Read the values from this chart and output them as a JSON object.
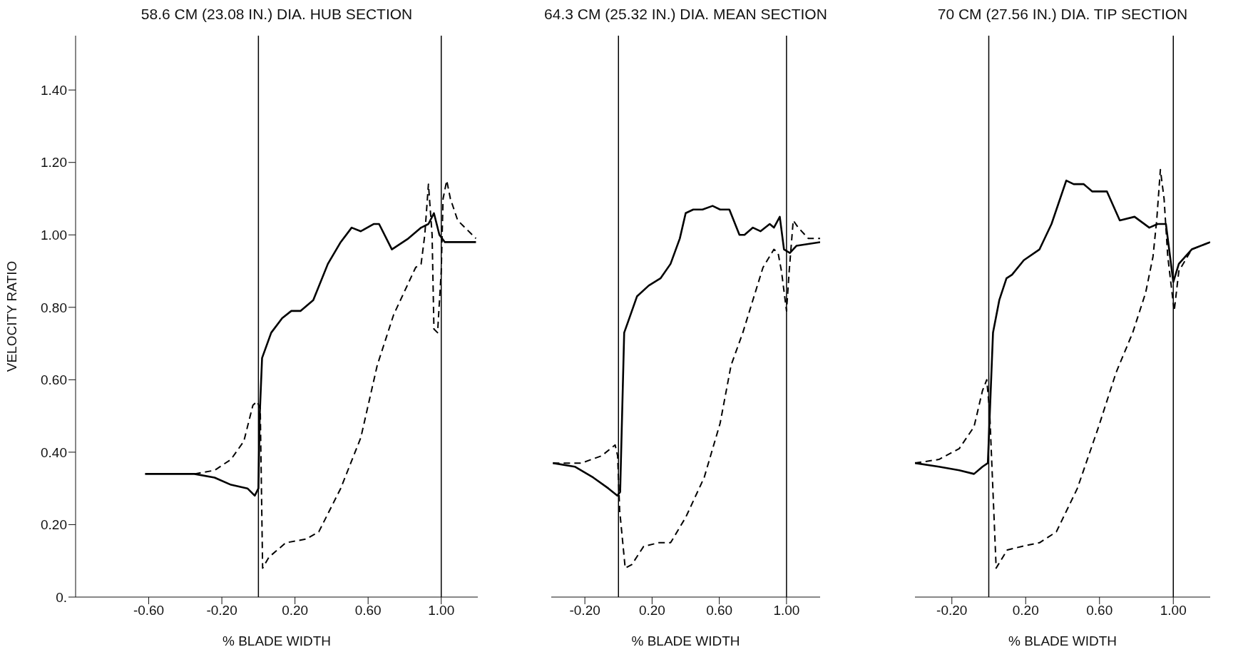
{
  "chart_data": [
    {
      "type": "line",
      "title": "58.6 CM (23.08 IN.) DIA. HUB SECTION",
      "xlabel": "% BLADE WIDTH",
      "ylabel": "VELOCITY RATIO",
      "xlim": [
        -1.0,
        1.2
      ],
      "ylim": [
        0,
        1.55
      ],
      "xticks": [
        {
          "value": -0.6,
          "label": "-0.60"
        },
        {
          "value": -0.2,
          "label": "-0.20"
        },
        {
          "value": 0.2,
          "label": "0.20"
        },
        {
          "value": 0.6,
          "label": "0.60"
        },
        {
          "value": 1.0,
          "label": "1.00"
        }
      ],
      "yticks": [
        {
          "value": 0,
          "label": "0."
        },
        {
          "value": 0.2,
          "label": "0.20"
        },
        {
          "value": 0.4,
          "label": "0.40"
        },
        {
          "value": 0.6,
          "label": "0.60"
        },
        {
          "value": 0.8,
          "label": "0.80"
        },
        {
          "value": 1.0,
          "label": "1.00"
        },
        {
          "value": 1.2,
          "label": "1.20"
        },
        {
          "value": 1.4,
          "label": "1.40"
        }
      ],
      "ref_lines": [
        {
          "axis": "x",
          "value": 0,
          "color": "#000000"
        },
        {
          "axis": "x",
          "value": 1.0,
          "color": "#000000"
        }
      ],
      "series": [
        {
          "color": "#000000",
          "line_style": "solid",
          "x": [
            -0.62,
            -0.35,
            -0.24,
            -0.15,
            -0.06,
            -0.02,
            0.0,
            0.007,
            0.02,
            0.07,
            0.13,
            0.18,
            0.23,
            0.3,
            0.38,
            0.45,
            0.51,
            0.56,
            0.63,
            0.66,
            0.73,
            0.82,
            0.89,
            0.93,
            0.96,
            0.99,
            1.02,
            1.19
          ],
          "values": [
            0.34,
            0.34,
            0.33,
            0.31,
            0.3,
            0.28,
            0.3,
            0.5,
            0.66,
            0.73,
            0.77,
            0.79,
            0.79,
            0.82,
            0.92,
            0.98,
            1.02,
            1.01,
            1.03,
            1.03,
            0.96,
            0.99,
            1.02,
            1.03,
            1.06,
            1.0,
            0.98,
            0.98
          ]
        },
        {
          "color": "#000000",
          "line_style": "dashed",
          "x": [
            -0.35,
            -0.24,
            -0.15,
            -0.08,
            -0.03,
            -0.007,
            0.01,
            0.023,
            0.057,
            0.15,
            0.26,
            0.33,
            0.45,
            0.56,
            0.65,
            0.74,
            0.86,
            0.89,
            0.91,
            0.93,
            0.95,
            0.96,
            0.98,
            1.0,
            1.01,
            1.03,
            1.05,
            1.09,
            1.19
          ],
          "values": [
            0.34,
            0.35,
            0.38,
            0.43,
            0.53,
            0.54,
            0.52,
            0.08,
            0.11,
            0.15,
            0.16,
            0.18,
            0.3,
            0.44,
            0.64,
            0.78,
            0.91,
            0.92,
            1.0,
            1.14,
            1.0,
            0.74,
            0.73,
            0.9,
            1.1,
            1.15,
            1.1,
            1.04,
            0.99
          ]
        }
      ]
    },
    {
      "type": "line",
      "title": "64.3 CM (25.32 IN.) DIA. MEAN SECTION",
      "xlabel": "% BLADE WIDTH",
      "xlim": [
        -0.4,
        1.2
      ],
      "ylim": [
        0,
        1.55
      ],
      "tick_labels": "x",
      "xticks": [
        {
          "value": -0.2,
          "label": "-0.20"
        },
        {
          "value": 0.2,
          "label": "0.20"
        },
        {
          "value": 0.6,
          "label": "0.60"
        },
        {
          "value": 1.0,
          "label": "1.00"
        }
      ],
      "ref_lines": [
        {
          "axis": "x",
          "value": 0,
          "color": "#000000"
        },
        {
          "axis": "x",
          "value": 1.0,
          "color": "#000000"
        }
      ],
      "series": [
        {
          "color": "#000000",
          "line_style": "solid",
          "x": [
            -0.39,
            -0.26,
            -0.15,
            -0.06,
            -0.007,
            0.01,
            0.034,
            0.057,
            0.11,
            0.18,
            0.25,
            0.31,
            0.365,
            0.4,
            0.445,
            0.5,
            0.56,
            0.605,
            0.66,
            0.72,
            0.75,
            0.8,
            0.845,
            0.9,
            0.925,
            0.96,
            0.985,
            1.02,
            1.06,
            1.2
          ],
          "values": [
            0.37,
            0.36,
            0.33,
            0.3,
            0.28,
            0.29,
            0.73,
            0.76,
            0.83,
            0.86,
            0.88,
            0.92,
            0.99,
            1.06,
            1.07,
            1.07,
            1.08,
            1.07,
            1.07,
            1.0,
            1.0,
            1.02,
            1.01,
            1.03,
            1.02,
            1.05,
            0.96,
            0.95,
            0.97,
            0.98
          ]
        },
        {
          "color": "#000000",
          "line_style": "dashed",
          "x": [
            -0.39,
            -0.22,
            -0.1,
            -0.02,
            -0.005,
            0.007,
            0.04,
            0.08,
            0.15,
            0.24,
            0.31,
            0.4,
            0.51,
            0.605,
            0.67,
            0.74,
            0.86,
            0.925,
            0.95,
            0.97,
            1.0,
            1.016,
            1.04,
            1.07,
            1.13,
            1.2
          ],
          "values": [
            0.37,
            0.37,
            0.39,
            0.42,
            0.39,
            0.24,
            0.08,
            0.09,
            0.14,
            0.15,
            0.15,
            0.22,
            0.33,
            0.48,
            0.64,
            0.73,
            0.91,
            0.96,
            0.95,
            0.9,
            0.79,
            0.9,
            1.04,
            1.02,
            0.99,
            0.99
          ]
        }
      ]
    },
    {
      "type": "line",
      "title": "70 CM (27.56 IN.) DIA. TIP SECTION",
      "xlabel": "% BLADE WIDTH",
      "xlim": [
        -0.4,
        1.2
      ],
      "ylim": [
        0,
        1.55
      ],
      "tick_labels": "x",
      "xticks": [
        {
          "value": -0.2,
          "label": "-0.20"
        },
        {
          "value": 0.2,
          "label": "0.20"
        },
        {
          "value": 0.6,
          "label": "0.60"
        },
        {
          "value": 1.0,
          "label": "1.00"
        }
      ],
      "ref_lines": [
        {
          "axis": "x",
          "value": 0,
          "color": "#000000"
        },
        {
          "axis": "x",
          "value": 1.0,
          "color": "#000000"
        }
      ],
      "series": [
        {
          "color": "#000000",
          "line_style": "solid",
          "x": [
            -0.4,
            -0.27,
            -0.16,
            -0.08,
            -0.034,
            -0.005,
            0.023,
            0.057,
            0.096,
            0.126,
            0.19,
            0.275,
            0.34,
            0.42,
            0.46,
            0.515,
            0.56,
            0.64,
            0.71,
            0.79,
            0.87,
            0.915,
            0.96,
            1.0,
            1.03,
            1.1,
            1.2
          ],
          "values": [
            0.37,
            0.36,
            0.35,
            0.34,
            0.36,
            0.37,
            0.73,
            0.82,
            0.88,
            0.89,
            0.93,
            0.96,
            1.03,
            1.15,
            1.14,
            1.14,
            1.12,
            1.12,
            1.04,
            1.05,
            1.02,
            1.03,
            1.03,
            0.87,
            0.92,
            0.96,
            0.98
          ]
        },
        {
          "color": "#000000",
          "line_style": "dashed",
          "x": [
            -0.4,
            -0.27,
            -0.16,
            -0.08,
            -0.034,
            -0.011,
            0.005,
            0.04,
            0.1,
            0.18,
            0.275,
            0.366,
            0.48,
            0.595,
            0.69,
            0.78,
            0.85,
            0.89,
            0.91,
            0.93,
            0.95,
            0.97,
            1.005,
            1.03,
            1.1,
            1.2
          ],
          "values": [
            0.37,
            0.38,
            0.41,
            0.47,
            0.57,
            0.6,
            0.51,
            0.08,
            0.13,
            0.14,
            0.15,
            0.18,
            0.3,
            0.47,
            0.62,
            0.73,
            0.84,
            0.94,
            1.04,
            1.18,
            1.1,
            0.94,
            0.79,
            0.9,
            0.96,
            0.98
          ]
        }
      ]
    }
  ]
}
